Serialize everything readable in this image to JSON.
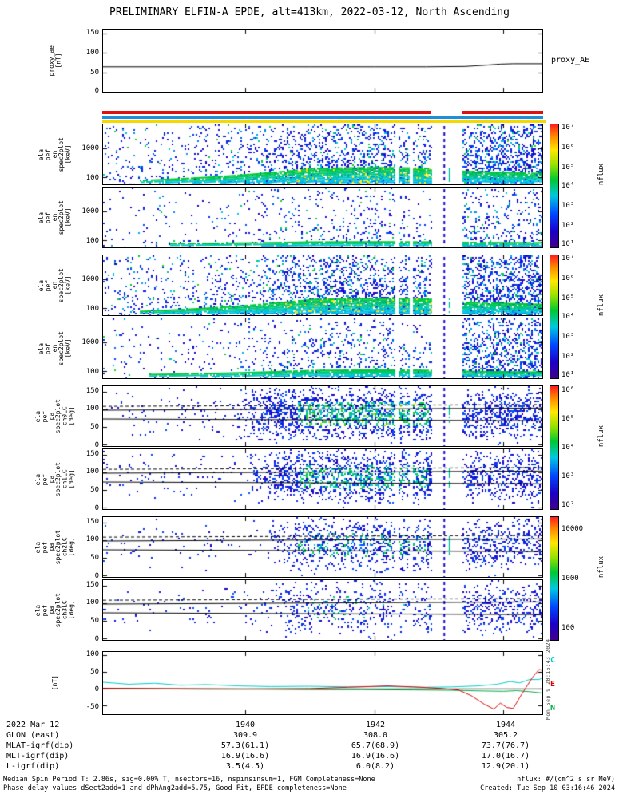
{
  "title": "PRELIMINARY ELFIN-A EPDE, alt=413km, 2022-03-12, North Ascending",
  "accent_colors": {
    "bar_red": "#dd1111",
    "bar_blue": "#1d8fd6",
    "bar_yellow": "#f5d800"
  },
  "proxy_panel": {
    "ylabel": "proxy_ae\n[nT]",
    "right_label": "proxy_AE",
    "yticks": [
      "150",
      "100",
      "50",
      "0"
    ]
  },
  "panels": [
    {
      "ylabel": "ela\npef\nen\nspec2plot\n[keV]",
      "yticks": [
        "1000",
        "100"
      ]
    },
    {
      "ylabel": "ela\npef\nen\nspec2plot\n[keV]",
      "yticks": [
        "1000",
        "100"
      ]
    },
    {
      "ylabel": "ela\npef\nen\nspec2plot\n[keV]",
      "yticks": [
        "1000",
        "100"
      ]
    },
    {
      "ylabel": "ela\npef\nen\nspec2plot\n[keV]",
      "yticks": [
        "1000",
        "100"
      ]
    },
    {
      "ylabel": "ela\npef\npa\nspec2plot\nch0LC\n[deg]",
      "yticks": [
        "150",
        "100",
        "50",
        "0"
      ]
    },
    {
      "ylabel": "ela\npef\npa\nspec2plot\nch1LC\n[deg]",
      "yticks": [
        "150",
        "100",
        "50",
        "0"
      ]
    },
    {
      "ylabel": "ela\npef\npa\nspec2plot\nch2LC\n[deg]",
      "yticks": [
        "150",
        "100",
        "50",
        "0"
      ]
    },
    {
      "ylabel": "ela\npef\npa\nspec2plot\nch3LC\n[deg]",
      "yticks": [
        "150",
        "100",
        "50",
        "0"
      ]
    }
  ],
  "colorbars": [
    {
      "ticks": [
        "10⁷",
        "10⁶",
        "10⁵",
        "10⁴",
        "10³",
        "10²",
        "10¹"
      ],
      "label": "nflux"
    },
    {
      "ticks": [
        "10⁷",
        "10⁶",
        "10⁵",
        "10⁴",
        "10³",
        "10²",
        "10¹"
      ],
      "label": "nflux"
    },
    {
      "ticks": [
        "10⁶",
        "10⁵",
        "10⁴",
        "10³",
        "10²"
      ],
      "label": "nflux"
    },
    {
      "ticks": [
        "10000",
        "1000",
        "100"
      ],
      "label": "nflux"
    }
  ],
  "bottom_panel": {
    "ylabel": "[nT]",
    "yticks": [
      "100",
      "50",
      "0",
      "-50"
    ],
    "legend": [
      {
        "label": "C",
        "color": "#00cccc"
      },
      {
        "label": "E",
        "color": "#dd0000"
      },
      {
        "label": "N",
        "color": "#00aa44"
      }
    ]
  },
  "xaxis": {
    "date": "2022 Mar 12",
    "ticks": [
      "1940",
      "1942",
      "1944"
    ],
    "rows": [
      {
        "label": "GLON (east)",
        "values": [
          "309.9",
          "308.0",
          "305.2"
        ]
      },
      {
        "label": "MLAT-igrf(dip)",
        "values": [
          "57.3(61.1)",
          "65.7(68.9)",
          "73.7(76.7)"
        ]
      },
      {
        "label": "MLT-igrf(dip)",
        "values": [
          "16.9(16.6)",
          "16.9(16.6)",
          "17.0(16.7)"
        ]
      },
      {
        "label": "L-igrf(dip)",
        "values": [
          "3.5(4.5)",
          "6.0(8.2)",
          "12.9(20.1)"
        ]
      }
    ]
  },
  "footer": {
    "line1": "Median Spin Period T: 2.86s, sig=0.00% T, nsectors=16, nspinsinsum=1, FGM Completeness=None",
    "line2": "Phase delay values dSect2add=1 and dPhAng2add=5.75, Good Fit, EPDE completeness=None",
    "nflux_units": "nflux: #/(cm^2 s sr MeV)",
    "created": "Created: Tue Sep 10 03:16:46 2024"
  },
  "watermark": "Mon Sep 9 20:15:43 2024",
  "chart_data": [
    {
      "id": "proxy_ae",
      "type": "line",
      "title": "proxy_AE",
      "xrange": [
        1937.8,
        1944.6
      ],
      "yrange": [
        0,
        160
      ],
      "xticks": [
        1940,
        1942,
        1944
      ],
      "yticks": [
        0,
        50,
        100,
        150
      ],
      "series": [
        {
          "name": "proxy_AE",
          "color": "#000000",
          "points": [
            [
              1937.8,
              64
            ],
            [
              1939.0,
              64
            ],
            [
              1940.0,
              64
            ],
            [
              1941.0,
              64
            ],
            [
              1942.0,
              64
            ],
            [
              1942.8,
              64
            ],
            [
              1943.4,
              65
            ],
            [
              1943.7,
              68
            ],
            [
              1943.95,
              71
            ],
            [
              1944.15,
              72
            ],
            [
              1944.6,
              72
            ]
          ]
        }
      ]
    },
    {
      "id": "en_spec_a",
      "type": "heatmap",
      "kind": "energy",
      "ylabel": "ela pef en spec2plot [keV]",
      "yscale": "log",
      "yrange_keV": [
        55,
        7000
      ],
      "flux_range": [
        10,
        10000000
      ],
      "xrange": [
        1937.8,
        1944.6
      ],
      "description": "Electron energy spectrogram: ~100 keV flux band grows from 19:39 to 19:43 (blue to green), scattered low-flux speckle above, data gap 19:42.9-19:43.3, dense broadband flux after gap.",
      "pattern": {
        "seed": 11,
        "speckle": 0.1,
        "mid": 0.28,
        "band": 1.0,
        "postgap": 0.5,
        "gap": [
          0.746,
          0.815
        ],
        "dash": 0.775,
        "dropouts": [
          0.668,
          0.7
        ]
      }
    },
    {
      "id": "en_spec_b",
      "type": "heatmap",
      "kind": "energy",
      "ylabel": "ela pef en spec2plot [keV]",
      "yscale": "log",
      "yrange_keV": [
        55,
        7000
      ],
      "flux_range": [
        10,
        10000000
      ],
      "xrange": [
        1937.8,
        1944.6
      ],
      "description": "Sparse electron energy spectrogram, weak low-energy enhancement near 19:41-19:42.",
      "pattern": {
        "seed": 22,
        "speckle": 0.035,
        "mid": 0.1,
        "band": 0.15,
        "postgap": 0.22,
        "gap": [
          0.746,
          0.815
        ],
        "dash": 0.775,
        "dropouts": [
          0.668,
          0.7
        ]
      }
    },
    {
      "id": "en_spec_c",
      "type": "heatmap",
      "kind": "energy",
      "ylabel": "ela pef en spec2plot [keV]",
      "yscale": "log",
      "yrange_keV": [
        55,
        7000
      ],
      "flux_range": [
        10,
        10000000
      ],
      "xrange": [
        1937.8,
        1944.6
      ],
      "description": "Electron energy spectrogram with strong ~100 keV green band from 19:40.5 onward, dense purple speckle cloud above, gap then dense flux.",
      "pattern": {
        "seed": 33,
        "speckle": 0.12,
        "mid": 0.32,
        "band": 1.0,
        "postgap": 0.55,
        "gap": [
          0.746,
          0.815
        ],
        "dash": 0.775,
        "dropouts": [
          0.668,
          0.7
        ]
      }
    },
    {
      "id": "en_spec_d",
      "type": "heatmap",
      "kind": "energy",
      "ylabel": "ela pef en spec2plot [keV]",
      "yscale": "log",
      "yrange_keV": [
        55,
        7000
      ],
      "flux_range": [
        10,
        10000000
      ],
      "xrange": [
        1937.8,
        1944.6
      ],
      "description": "Moderate-density energy spectrogram, weak low-energy band mid-interval, dense flux after the gap.",
      "pattern": {
        "seed": 44,
        "speckle": 0.05,
        "mid": 0.16,
        "band": 0.35,
        "postgap": 0.45,
        "gap": [
          0.746,
          0.815
        ],
        "dash": 0.775,
        "dropouts": [
          0.668,
          0.7
        ]
      }
    },
    {
      "id": "pa_spec_ch0",
      "type": "heatmap",
      "kind": "pitch",
      "ylabel": "ela pef pa spec2plot ch0LC [deg]",
      "yrange_deg": [
        -5,
        165
      ],
      "flux_range": [
        100,
        1000000
      ],
      "xrange": [
        1937.8,
        1944.6
      ],
      "description": "Pitch-angle spectrogram ch0: dense flux 19:40-19:42.9 with cyan/green core near 90 deg, loss-cone lines (solid) and antiloss-cone (dashed) overlaid, gap then purple flux.",
      "pattern": {
        "seed": 55,
        "sparse": 0.05,
        "dense": 0.55,
        "core": 1.0,
        "postgap": 0.4,
        "rise": [
          0.28,
          0.4
        ],
        "gap": [
          0.746,
          0.815
        ],
        "dash": 0.775,
        "dropouts": [
          0.668,
          0.7
        ]
      }
    },
    {
      "id": "pa_spec_ch1",
      "type": "heatmap",
      "kind": "pitch",
      "ylabel": "ela pef pa spec2plot ch1LC [deg]",
      "yrange_deg": [
        -5,
        165
      ],
      "flux_range": [
        100,
        1000000
      ],
      "xrange": [
        1937.8,
        1944.6
      ],
      "description": "Pitch-angle spectrogram ch1: similar to ch0 with slightly weaker core.",
      "pattern": {
        "seed": 66,
        "sparse": 0.04,
        "dense": 0.45,
        "core": 0.8,
        "postgap": 0.35,
        "rise": [
          0.3,
          0.42
        ],
        "gap": [
          0.746,
          0.815
        ],
        "dash": 0.775,
        "dropouts": [
          0.668,
          0.7
        ]
      }
    },
    {
      "id": "pa_spec_ch2",
      "type": "heatmap",
      "kind": "pitch",
      "ylabel": "ela pef pa spec2plot ch2LC [deg]",
      "yrange_deg": [
        -5,
        165
      ],
      "flux_range": [
        100,
        1000000
      ],
      "xrange": [
        1937.8,
        1944.6
      ],
      "description": "Pitch-angle spectrogram ch2: weaker, dense only ~19:41-19:42.5.",
      "pattern": {
        "seed": 77,
        "sparse": 0.03,
        "dense": 0.35,
        "core": 0.55,
        "postgap": 0.3,
        "rise": [
          0.36,
          0.46
        ],
        "gap": [
          0.746,
          0.815
        ],
        "dash": 0.775,
        "dropouts": [
          0.668,
          0.7
        ]
      }
    },
    {
      "id": "pa_spec_ch3",
      "type": "heatmap",
      "kind": "pitch",
      "ylabel": "ela pef pa spec2plot ch3LC [deg]",
      "yrange_deg": [
        -5,
        165
      ],
      "flux_range": [
        100,
        10000
      ],
      "xrange": [
        1937.8,
        1944.6
      ],
      "description": "Pitch-angle spectrogram ch3: sparse purple speckle, faint core.",
      "pattern": {
        "seed": 88,
        "sparse": 0.03,
        "dense": 0.22,
        "core": 0.25,
        "postgap": 0.28,
        "rise": [
          0.3,
          0.44
        ],
        "gap": [
          0.746,
          0.815
        ],
        "dash": 0.775,
        "dropouts": [
          0.668,
          0.7
        ]
      }
    },
    {
      "id": "mag",
      "type": "line",
      "title": "magnetic field residuals",
      "xrange": [
        1937.8,
        1944.6
      ],
      "yrange": [
        -75,
        110
      ],
      "xticks": [
        1940,
        1942,
        1944
      ],
      "yticks": [
        -50,
        0,
        50,
        100
      ],
      "zero_line": true,
      "series": [
        {
          "name": "N",
          "color": "#00aa44",
          "points": [
            [
              1937.8,
              1
            ],
            [
              1938.6,
              0
            ],
            [
              1939.4,
              -1
            ],
            [
              1940.2,
              -1
            ],
            [
              1941.0,
              -2
            ],
            [
              1941.8,
              -2
            ],
            [
              1942.6,
              -3
            ],
            [
              1943.2,
              -4
            ],
            [
              1943.7,
              -6
            ],
            [
              1944.0,
              -7
            ],
            [
              1944.2,
              -5
            ],
            [
              1944.4,
              -8
            ],
            [
              1944.6,
              -12
            ]
          ]
        },
        {
          "name": "C",
          "color": "#00cccc",
          "points": [
            [
              1937.8,
              20
            ],
            [
              1938.2,
              14
            ],
            [
              1938.6,
              17
            ],
            [
              1939.0,
              11
            ],
            [
              1939.4,
              13
            ],
            [
              1939.9,
              9
            ],
            [
              1940.4,
              7
            ],
            [
              1941.0,
              8
            ],
            [
              1941.6,
              6
            ],
            [
              1942.2,
              7
            ],
            [
              1942.8,
              5
            ],
            [
              1943.2,
              6
            ],
            [
              1943.6,
              9
            ],
            [
              1943.9,
              14
            ],
            [
              1944.1,
              22
            ],
            [
              1944.25,
              18
            ],
            [
              1944.4,
              28
            ],
            [
              1944.55,
              28
            ],
            [
              1944.6,
              33
            ]
          ]
        },
        {
          "name": "E",
          "color": "#dd0000",
          "points": [
            [
              1937.8,
              2
            ],
            [
              1939.0,
              1
            ],
            [
              1940.0,
              0
            ],
            [
              1941.0,
              1
            ],
            [
              1941.6,
              5
            ],
            [
              1942.2,
              9
            ],
            [
              1942.6,
              6
            ],
            [
              1943.0,
              2
            ],
            [
              1943.3,
              -3
            ],
            [
              1943.5,
              -20
            ],
            [
              1943.7,
              -45
            ],
            [
              1943.85,
              -60
            ],
            [
              1943.95,
              -42
            ],
            [
              1944.05,
              -55
            ],
            [
              1944.15,
              -58
            ],
            [
              1944.25,
              -25
            ],
            [
              1944.35,
              5
            ],
            [
              1944.45,
              35
            ],
            [
              1944.55,
              58
            ],
            [
              1944.6,
              55
            ]
          ]
        }
      ]
    }
  ]
}
